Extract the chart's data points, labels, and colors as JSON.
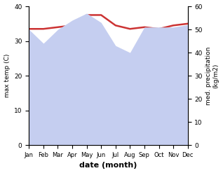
{
  "months": [
    "Jan",
    "Feb",
    "Mar",
    "Apr",
    "May",
    "Jun",
    "Jul",
    "Aug",
    "Sep",
    "Oct",
    "Nov",
    "Dec"
  ],
  "max_temp": [
    33.5,
    33.5,
    34.0,
    34.5,
    37.5,
    37.5,
    34.5,
    33.5,
    34.0,
    33.5,
    34.5,
    35.0
  ],
  "precipitation": [
    50,
    44,
    50,
    54,
    57,
    53,
    43,
    40,
    51,
    51,
    51,
    52
  ],
  "precip_scale_max": 60,
  "temp_max": 40,
  "temp_min": 0,
  "xlabel": "date (month)",
  "ylabel_left": "max temp (C)",
  "ylabel_right": "med. precipitation\n(kg/m2)",
  "temp_line_color": "#cc3333",
  "precip_fill_color": "#c5cef0",
  "background_color": "#ffffff"
}
